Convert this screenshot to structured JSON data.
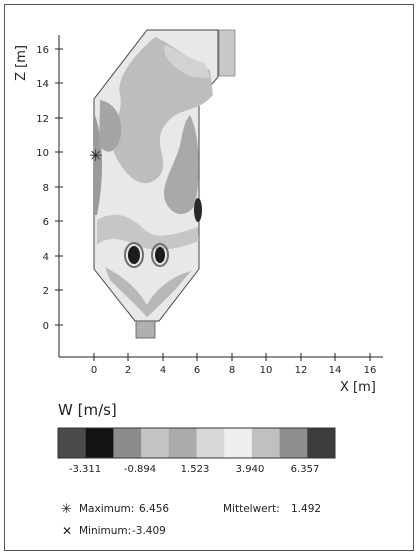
{
  "axes": {
    "z_title": "Z [m]",
    "x_title": "X [m]",
    "z_ticks": [
      "0",
      "2",
      "4",
      "6",
      "8",
      "10",
      "12",
      "14",
      "16"
    ],
    "x_ticks": [
      "0",
      "2",
      "4",
      "6",
      "8",
      "10",
      "12",
      "14",
      "16"
    ]
  },
  "legend": {
    "title": "W [m/s]",
    "color_steps": [
      "#4a4a4a",
      "#141414",
      "#8c8c8c",
      "#c4c4c4",
      "#aaaaaa",
      "#d8d8d8",
      "#eeeeee",
      "#c0c0c0",
      "#8e8e8e",
      "#3c3c3c"
    ],
    "scale_values": [
      "-3.311",
      "-0.894",
      "1.523",
      "3.940",
      "6.357"
    ]
  },
  "stats": {
    "maximum_symbol": "✳",
    "maximum_label": "Maximum:",
    "maximum_value": "6.456",
    "mean_label": "Mittelwert:",
    "mean_value": "1.492",
    "minimum_symbol": "✕",
    "minimum_label": "Minimum:",
    "minimum_value": "-3.409"
  },
  "colors": {
    "light": "#e6e6e6",
    "mid": "#b4b4b4",
    "dark_mid": "#8f8f8f",
    "dark": "#2a2a2a",
    "outline": "#444444"
  }
}
